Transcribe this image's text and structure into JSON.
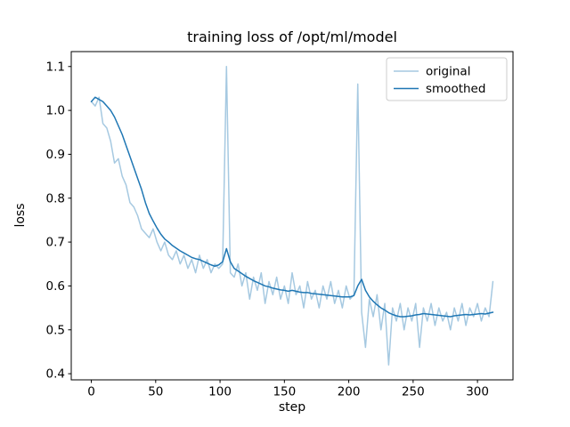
{
  "chart_data": {
    "type": "line",
    "title": "training loss of /opt/ml/model",
    "xlabel": "step",
    "ylabel": "loss",
    "xlim": [
      -15.6,
      327.6
    ],
    "ylim": [
      0.386,
      1.134
    ],
    "xticks": [
      0,
      50,
      100,
      150,
      200,
      250,
      300
    ],
    "yticks": [
      0.4,
      0.5,
      0.6,
      0.7,
      0.8,
      0.9,
      1.0,
      1.1
    ],
    "grid": false,
    "legend_position": "upper right",
    "x": [
      0,
      3,
      6,
      9,
      12,
      15,
      18,
      21,
      24,
      27,
      30,
      33,
      36,
      39,
      42,
      45,
      48,
      51,
      54,
      57,
      60,
      63,
      66,
      69,
      72,
      75,
      78,
      81,
      84,
      87,
      90,
      93,
      96,
      99,
      102,
      105,
      108,
      111,
      114,
      117,
      120,
      123,
      126,
      129,
      132,
      135,
      138,
      141,
      144,
      147,
      150,
      153,
      156,
      159,
      162,
      165,
      168,
      171,
      174,
      177,
      180,
      183,
      186,
      189,
      192,
      195,
      198,
      201,
      204,
      207,
      210,
      213,
      216,
      219,
      222,
      225,
      228,
      231,
      234,
      237,
      240,
      243,
      246,
      249,
      252,
      255,
      258,
      261,
      264,
      267,
      270,
      273,
      276,
      279,
      282,
      285,
      288,
      291,
      294,
      297,
      300,
      303,
      306,
      309,
      312
    ],
    "series": [
      {
        "name": "original",
        "color": "#a6c9e1",
        "values": [
          1.02,
          1.01,
          1.03,
          0.97,
          0.96,
          0.93,
          0.88,
          0.89,
          0.85,
          0.83,
          0.79,
          0.78,
          0.76,
          0.73,
          0.72,
          0.71,
          0.73,
          0.7,
          0.68,
          0.7,
          0.67,
          0.66,
          0.68,
          0.65,
          0.67,
          0.64,
          0.66,
          0.63,
          0.67,
          0.64,
          0.66,
          0.63,
          0.65,
          0.64,
          0.65,
          1.1,
          0.63,
          0.62,
          0.65,
          0.6,
          0.63,
          0.57,
          0.62,
          0.59,
          0.63,
          0.56,
          0.61,
          0.58,
          0.62,
          0.57,
          0.6,
          0.56,
          0.63,
          0.58,
          0.6,
          0.55,
          0.61,
          0.57,
          0.59,
          0.55,
          0.6,
          0.57,
          0.61,
          0.56,
          0.59,
          0.55,
          0.6,
          0.57,
          0.58,
          1.06,
          0.54,
          0.46,
          0.57,
          0.53,
          0.58,
          0.5,
          0.56,
          0.42,
          0.55,
          0.52,
          0.56,
          0.5,
          0.55,
          0.52,
          0.56,
          0.46,
          0.55,
          0.52,
          0.56,
          0.51,
          0.55,
          0.52,
          0.54,
          0.5,
          0.55,
          0.52,
          0.56,
          0.51,
          0.55,
          0.53,
          0.56,
          0.52,
          0.55,
          0.53,
          0.61
        ]
      },
      {
        "name": "smoothed",
        "color": "#1f77b4",
        "values": [
          1.02,
          1.03,
          1.025,
          1.02,
          1.01,
          1.0,
          0.985,
          0.965,
          0.945,
          0.92,
          0.895,
          0.87,
          0.845,
          0.82,
          0.79,
          0.765,
          0.748,
          0.732,
          0.718,
          0.707,
          0.7,
          0.692,
          0.686,
          0.68,
          0.675,
          0.67,
          0.665,
          0.662,
          0.66,
          0.656,
          0.652,
          0.648,
          0.645,
          0.648,
          0.655,
          0.685,
          0.655,
          0.64,
          0.634,
          0.628,
          0.622,
          0.617,
          0.612,
          0.608,
          0.604,
          0.6,
          0.598,
          0.595,
          0.593,
          0.591,
          0.59,
          0.588,
          0.59,
          0.588,
          0.586,
          0.585,
          0.585,
          0.583,
          0.582,
          0.581,
          0.58,
          0.579,
          0.578,
          0.577,
          0.576,
          0.575,
          0.575,
          0.575,
          0.578,
          0.6,
          0.615,
          0.59,
          0.575,
          0.565,
          0.557,
          0.55,
          0.545,
          0.539,
          0.535,
          0.532,
          0.53,
          0.53,
          0.531,
          0.532,
          0.534,
          0.535,
          0.537,
          0.536,
          0.535,
          0.534,
          0.533,
          0.532,
          0.531,
          0.53,
          0.532,
          0.533,
          0.534,
          0.535,
          0.534,
          0.535,
          0.536,
          0.537,
          0.536,
          0.538,
          0.54
        ]
      }
    ]
  }
}
